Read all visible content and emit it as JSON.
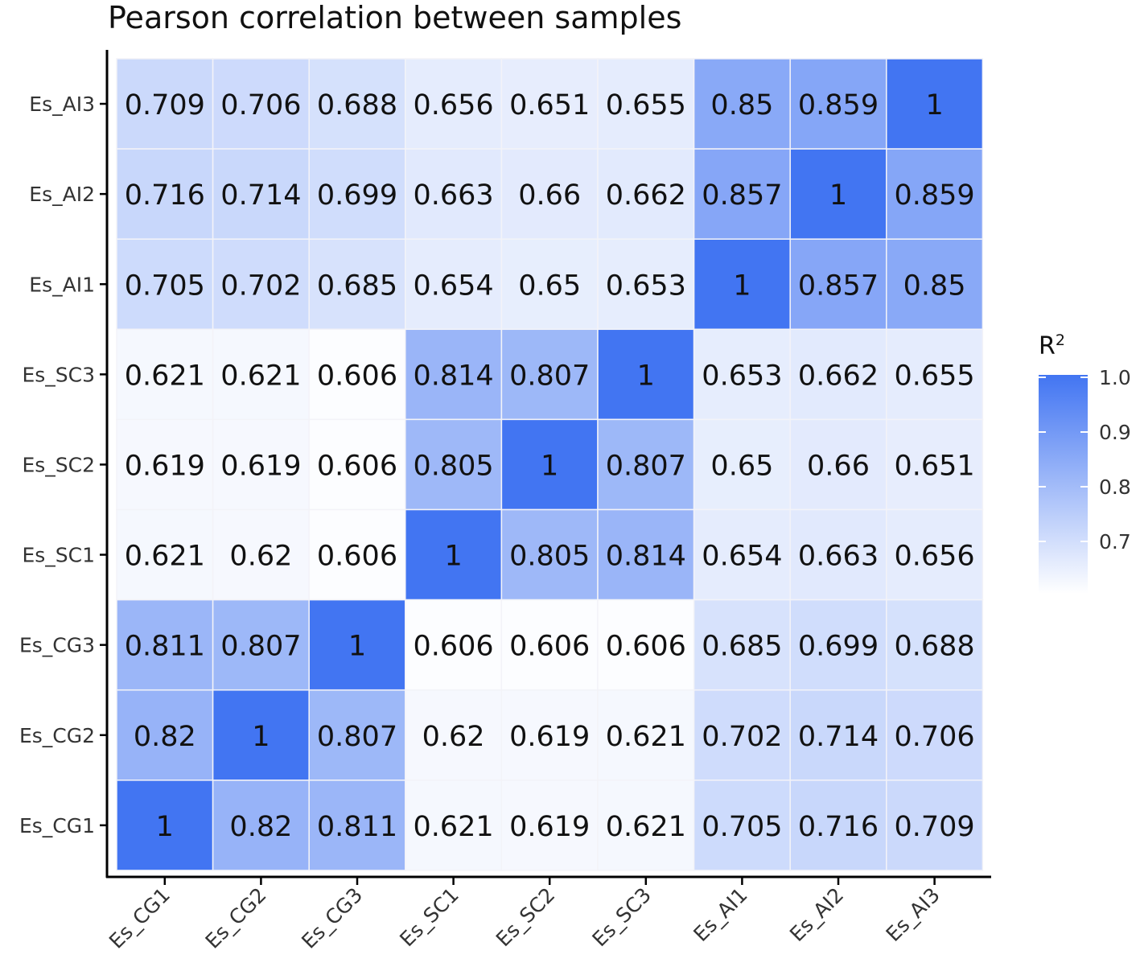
{
  "chart_data": {
    "type": "heatmap",
    "title": "Pearson correlation between samples",
    "xlabel": "",
    "ylabel": "",
    "x_categories": [
      "Es_CG1",
      "Es_CG2",
      "Es_CG3",
      "Es_SC1",
      "Es_SC2",
      "Es_SC3",
      "Es_AI1",
      "Es_AI2",
      "Es_AI3"
    ],
    "y_categories_top_to_bottom": [
      "Es_AI3",
      "Es_AI2",
      "Es_AI1",
      "Es_SC3",
      "Es_SC2",
      "Es_SC1",
      "Es_CG3",
      "Es_CG2",
      "Es_CG1"
    ],
    "value_labels": [
      [
        "0.709",
        "0.706",
        "0.688",
        "0.656",
        "0.651",
        "0.655",
        "0.85",
        "0.859",
        "1"
      ],
      [
        "0.716",
        "0.714",
        "0.699",
        "0.663",
        "0.66",
        "0.662",
        "0.857",
        "1",
        "0.859"
      ],
      [
        "0.705",
        "0.702",
        "0.685",
        "0.654",
        "0.65",
        "0.653",
        "1",
        "0.857",
        "0.85"
      ],
      [
        "0.621",
        "0.621",
        "0.606",
        "0.814",
        "0.807",
        "1",
        "0.653",
        "0.662",
        "0.655"
      ],
      [
        "0.619",
        "0.619",
        "0.606",
        "0.805",
        "1",
        "0.807",
        "0.65",
        "0.66",
        "0.651"
      ],
      [
        "0.621",
        "0.62",
        "0.606",
        "1",
        "0.805",
        "0.814",
        "0.654",
        "0.663",
        "0.656"
      ],
      [
        "0.811",
        "0.807",
        "1",
        "0.606",
        "0.606",
        "0.606",
        "0.685",
        "0.699",
        "0.688"
      ],
      [
        "0.82",
        "1",
        "0.807",
        "0.62",
        "0.619",
        "0.621",
        "0.702",
        "0.714",
        "0.706"
      ],
      [
        "1",
        "0.82",
        "0.811",
        "0.621",
        "0.619",
        "0.621",
        "0.705",
        "0.716",
        "0.709"
      ]
    ],
    "legend": {
      "title": "R",
      "title_superscript": "2",
      "ticks": [
        "0.7",
        "0.8",
        "0.9",
        "1.0"
      ],
      "range": [
        0.6,
        1.0
      ],
      "low_color": "#ffffff",
      "high_color": "#4275f2",
      "placement": "right"
    },
    "grid": false
  }
}
